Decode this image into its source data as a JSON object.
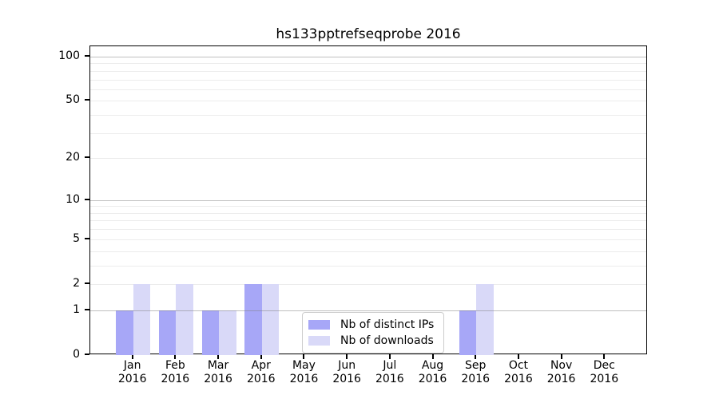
{
  "title": "hs133pptrefseqprobe 2016",
  "legend": {
    "items": [
      {
        "label": "Nb of distinct IPs",
        "color": "#a7a7f7"
      },
      {
        "label": "Nb of downloads",
        "color": "#d9d9f8"
      }
    ]
  },
  "chart_data": {
    "type": "bar",
    "title": "hs133pptrefseqprobe 2016",
    "categories": [
      "Jan",
      "Feb",
      "Mar",
      "Apr",
      "May",
      "Jun",
      "Jul",
      "Aug",
      "Sep",
      "Oct",
      "Nov",
      "Dec"
    ],
    "year_label": "2016",
    "series": [
      {
        "name": "Nb of distinct IPs",
        "color": "#a7a7f7",
        "values": [
          1,
          1,
          1,
          2,
          0,
          0,
          0,
          0,
          1,
          0,
          0,
          0
        ]
      },
      {
        "name": "Nb of downloads",
        "color": "#d9d9f8",
        "values": [
          2,
          2,
          1,
          2,
          0,
          0,
          0,
          0,
          2,
          0,
          0,
          0
        ]
      }
    ],
    "xlabel": "",
    "ylabel": "",
    "yscale": "log(value+1)",
    "ylim": [
      0,
      117
    ],
    "yticks": [
      0,
      1,
      2,
      5,
      10,
      20,
      50,
      100
    ],
    "gridlines": {
      "decade_values": [
        1,
        10,
        100
      ],
      "minor_values": [
        2,
        3,
        4,
        5,
        6,
        7,
        8,
        9,
        20,
        30,
        40,
        50,
        60,
        70,
        80,
        90
      ]
    },
    "grid": "horizontal",
    "legend_position": "lower center, inside plot"
  }
}
